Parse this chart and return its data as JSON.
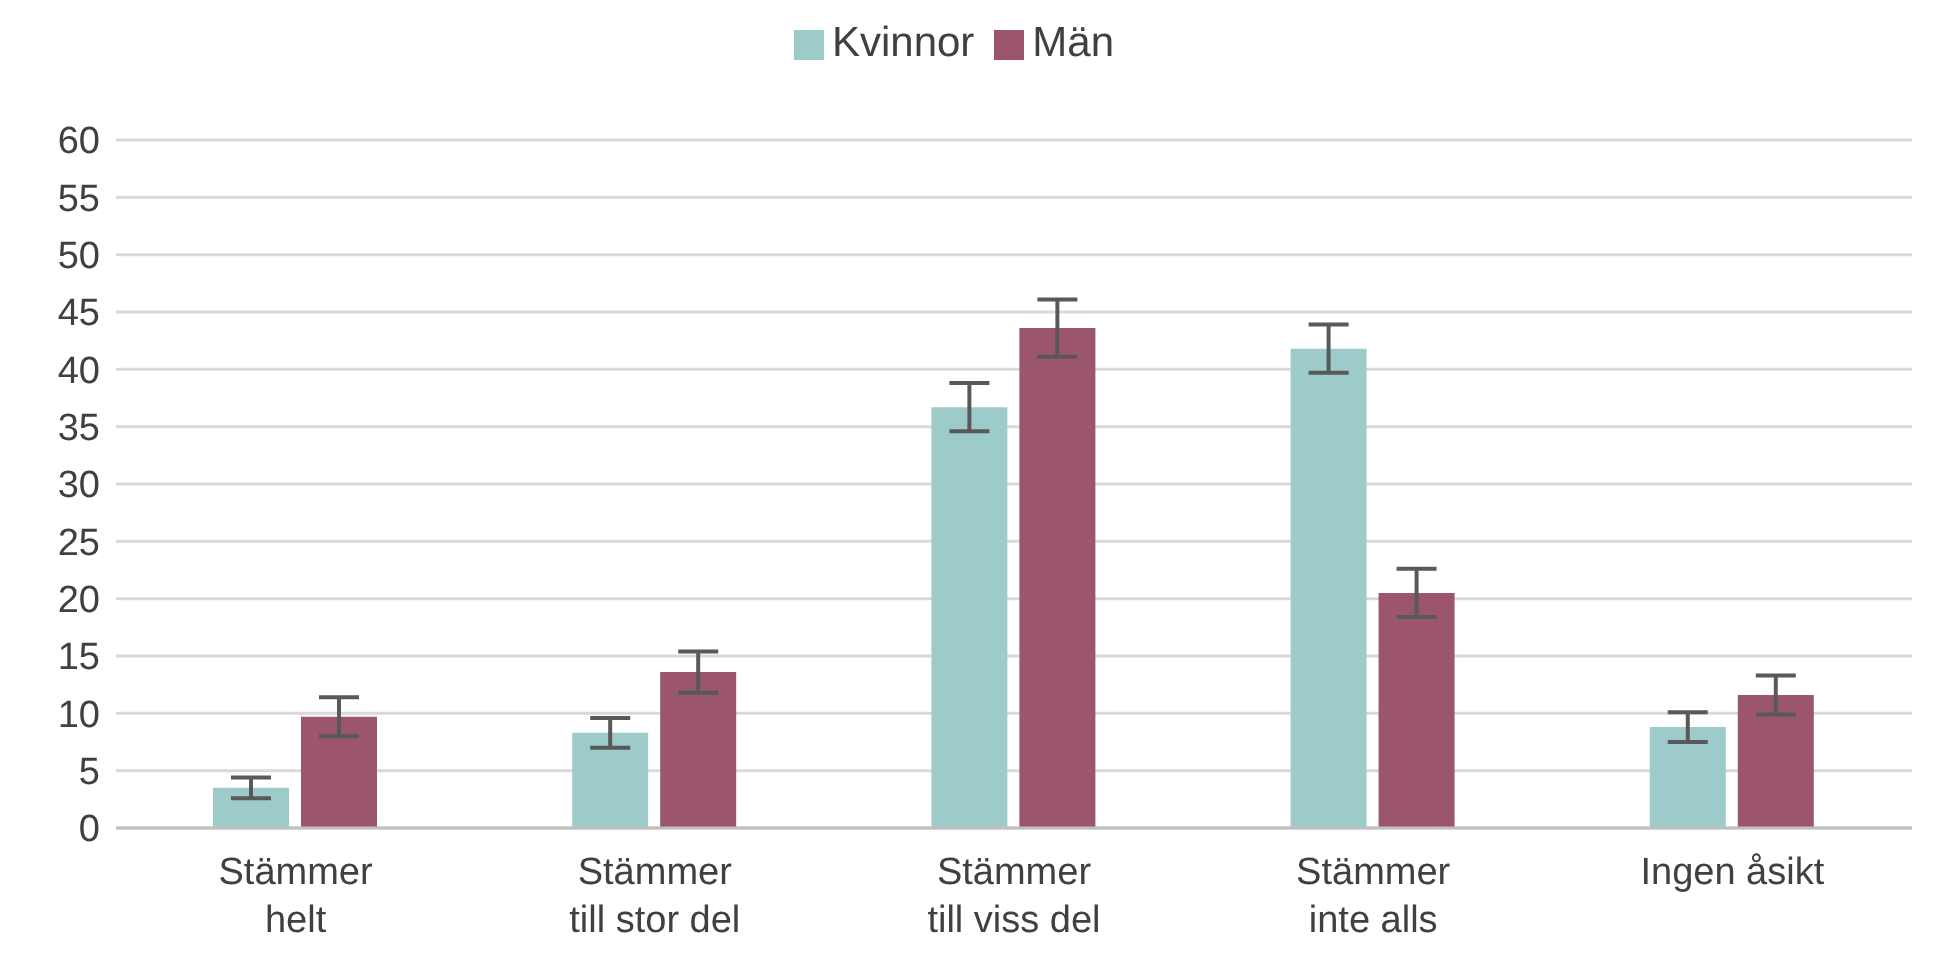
{
  "chart_data": {
    "type": "bar",
    "categories": [
      "Stämmer\nhelt",
      "Stämmer\ntill stor del",
      "Stämmer\ntill viss del",
      "Stämmer\ninte alls",
      "Ingen åsikt"
    ],
    "series": [
      {
        "name": "Kvinnor",
        "color": "#9dcbc9",
        "values": [
          3.5,
          8.3,
          36.7,
          41.8,
          8.8
        ],
        "errors": [
          0.9,
          1.3,
          2.1,
          2.1,
          1.3
        ]
      },
      {
        "name": "Män",
        "color": "#9b566e",
        "values": [
          9.7,
          13.6,
          43.6,
          20.5,
          11.6
        ],
        "errors": [
          1.7,
          1.8,
          2.5,
          2.1,
          1.7
        ]
      }
    ],
    "ylim": [
      0,
      60
    ],
    "yticks": [
      0,
      5,
      10,
      15,
      20,
      25,
      30,
      35,
      40,
      45,
      50,
      55,
      60
    ],
    "grid": "y",
    "legend": "top"
  }
}
